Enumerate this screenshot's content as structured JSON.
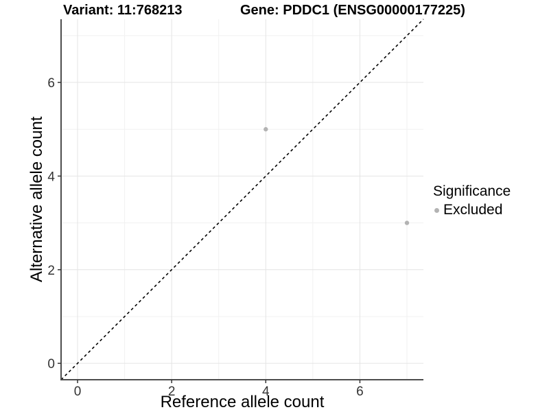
{
  "titles": {
    "variant": "Variant: 11:768213",
    "gene": "Gene: PDDC1 (ENSG00000177225)"
  },
  "axes": {
    "x_label": "Reference allele count",
    "y_label": "Alternative allele count"
  },
  "legend": {
    "title": "Significance",
    "items": [
      {
        "label": "Excluded",
        "color": "#b3b3b3"
      }
    ]
  },
  "chart_data": {
    "type": "scatter",
    "title": "Variant: 11:768213 | Gene: PDDC1 (ENSG00000177225)",
    "xlabel": "Reference allele count",
    "ylabel": "Alternative allele count",
    "xlim": [
      -0.35,
      7.35
    ],
    "ylim": [
      -0.35,
      7.35
    ],
    "x_ticks": [
      0,
      2,
      4,
      6
    ],
    "y_ticks": [
      0,
      2,
      4,
      6
    ],
    "x_minor_ticks": [
      1,
      3,
      5,
      7
    ],
    "y_minor_ticks": [
      1,
      3,
      5,
      7
    ],
    "grid": true,
    "legend_position": "right",
    "series": [
      {
        "name": "Excluded",
        "color": "#b3b3b3",
        "points": [
          {
            "x": 4,
            "y": 5
          },
          {
            "x": 7,
            "y": 3
          }
        ]
      }
    ],
    "reference_line": {
      "type": "identity-diagonal",
      "style": "dashed",
      "color": "#000000"
    }
  },
  "style_colors": {
    "background": "#ffffff",
    "grid_major": "#e4e4e4",
    "grid_minor": "#f1f1f1",
    "axis_line": "#4d4d4d",
    "tick_mark": "#333333",
    "tick_label": "#333333"
  }
}
